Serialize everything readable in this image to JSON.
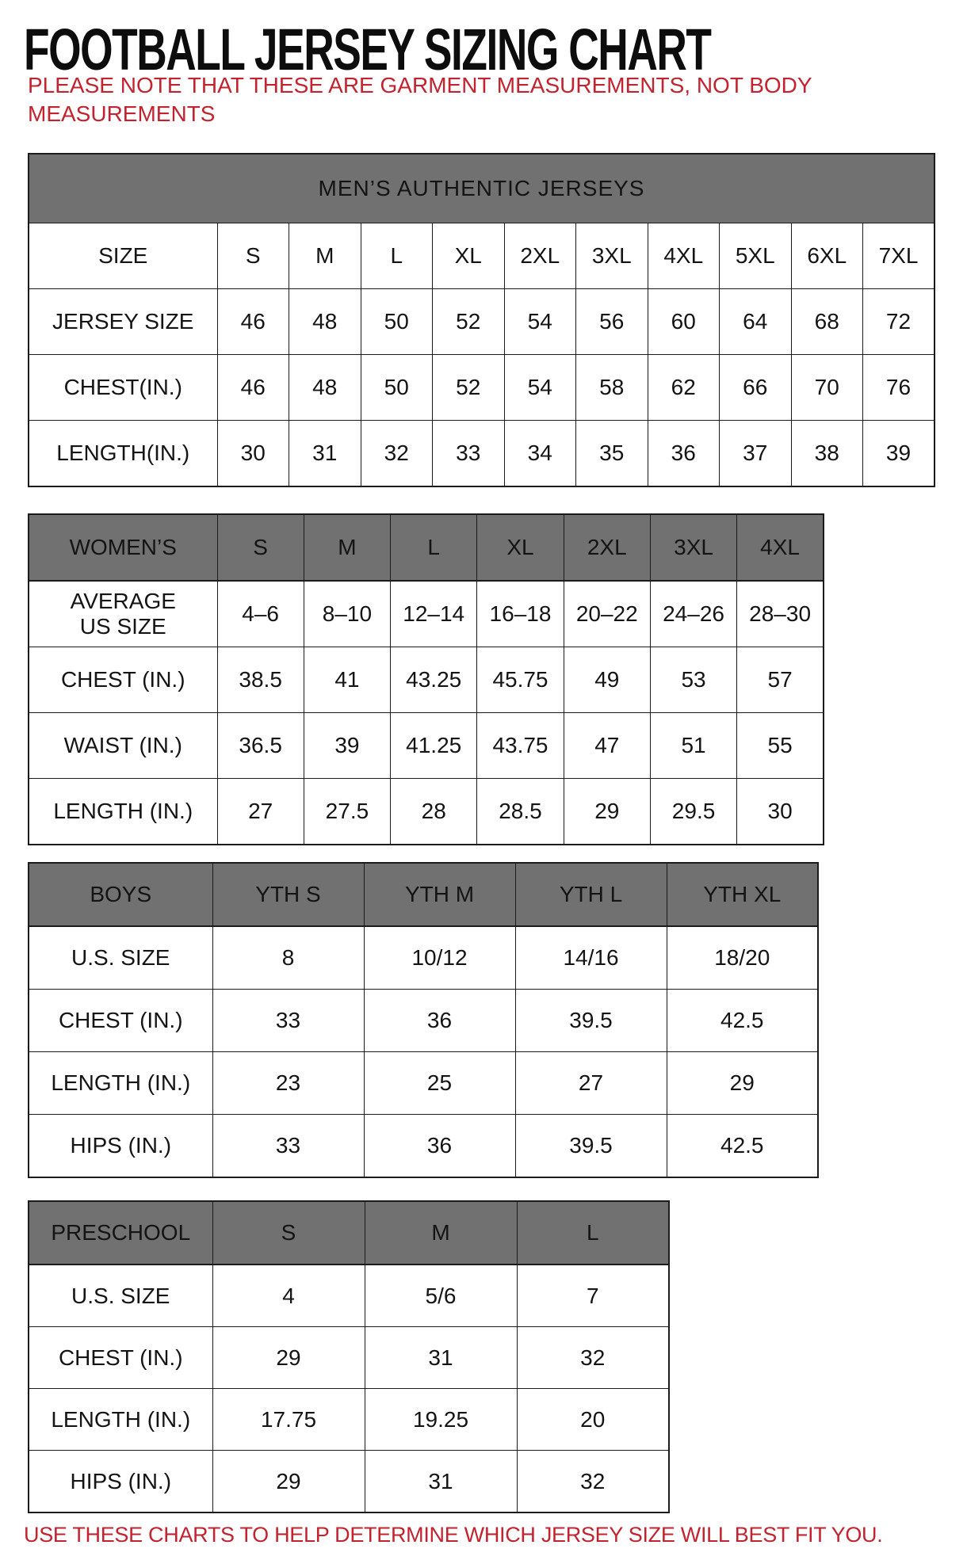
{
  "page": {
    "title": "FOOTBALL JERSEY SIZING CHART",
    "note": {
      "line1": "PLEASE NOTE THAT THESE ARE GARMENT MEASUREMENTS, NOT BODY",
      "line2": "MEASUREMENTS"
    },
    "footer": "USE THESE CHARTS TO HELP DETERMINE WHICH JERSEY SIZE WILL BEST FIT YOU.",
    "colors": {
      "header_gray": "#717171",
      "header_text": "#FFFFFF",
      "accent_red": "#C2232E",
      "text_black": "#141414",
      "border_black": "#1B1B1B"
    }
  },
  "tables": {
    "men": {
      "title": "MEN’S AUTHENTIC JERSEYS",
      "rows": [
        {
          "label": "SIZE",
          "values": [
            "S",
            "M",
            "L",
            "XL",
            "2XL",
            "3XL",
            "4XL",
            "5XL",
            "6XL",
            "7XL"
          ]
        },
        {
          "label": "JERSEY SIZE",
          "values": [
            "46",
            "48",
            "50",
            "52",
            "54",
            "56",
            "60",
            "64",
            "68",
            "72"
          ]
        },
        {
          "label": "CHEST(IN.)",
          "values": [
            "46",
            "48",
            "50",
            "52",
            "54",
            "58",
            "62",
            "66",
            "70",
            "76"
          ]
        },
        {
          "label": "LENGTH(IN.)",
          "values": [
            "30",
            "31",
            "32",
            "33",
            "34",
            "35",
            "36",
            "37",
            "38",
            "39"
          ]
        }
      ]
    },
    "women": {
      "header": [
        "WOMEN’S",
        "S",
        "M",
        "L",
        "XL",
        "2XL",
        "3XL",
        "4XL"
      ],
      "rows": [
        {
          "label": "AVERAGE US SIZE",
          "values": [
            "4–6",
            "8–10",
            "12–14",
            "16–18",
            "20–22",
            "24–26",
            "28–30"
          ]
        },
        {
          "label": "CHEST (IN.)",
          "values": [
            "38.5",
            "41",
            "43.25",
            "45.75",
            "49",
            "53",
            "57"
          ]
        },
        {
          "label": "WAIST (IN.)",
          "values": [
            "36.5",
            "39",
            "41.25",
            "43.75",
            "47",
            "51",
            "55"
          ]
        },
        {
          "label": "LENGTH (IN.)",
          "values": [
            "27",
            "27.5",
            "28",
            "28.5",
            "29",
            "29.5",
            "30"
          ]
        }
      ]
    },
    "boys": {
      "header": [
        "BOYS",
        "YTH S",
        "YTH M",
        "YTH L",
        "YTH XL"
      ],
      "rows": [
        {
          "label": "U.S. SIZE",
          "values": [
            "8",
            "10/12",
            "14/16",
            "18/20"
          ]
        },
        {
          "label": "CHEST (IN.)",
          "values": [
            "33",
            "36",
            "39.5",
            "42.5"
          ]
        },
        {
          "label": "LENGTH (IN.)",
          "values": [
            "23",
            "25",
            "27",
            "29"
          ]
        },
        {
          "label": "HIPS (IN.)",
          "values": [
            "33",
            "36",
            "39.5",
            "42.5"
          ]
        }
      ]
    },
    "preschool": {
      "header": [
        "PRESCHOOL",
        "S",
        "M",
        "L"
      ],
      "rows": [
        {
          "label": "U.S. SIZE",
          "values": [
            "4",
            "5/6",
            "7"
          ]
        },
        {
          "label": "CHEST (IN.)",
          "values": [
            "29",
            "31",
            "32"
          ]
        },
        {
          "label": "LENGTH (IN.)",
          "values": [
            "17.75",
            "19.25",
            "20"
          ]
        },
        {
          "label": "HIPS (IN.)",
          "values": [
            "29",
            "31",
            "32"
          ]
        }
      ]
    }
  }
}
